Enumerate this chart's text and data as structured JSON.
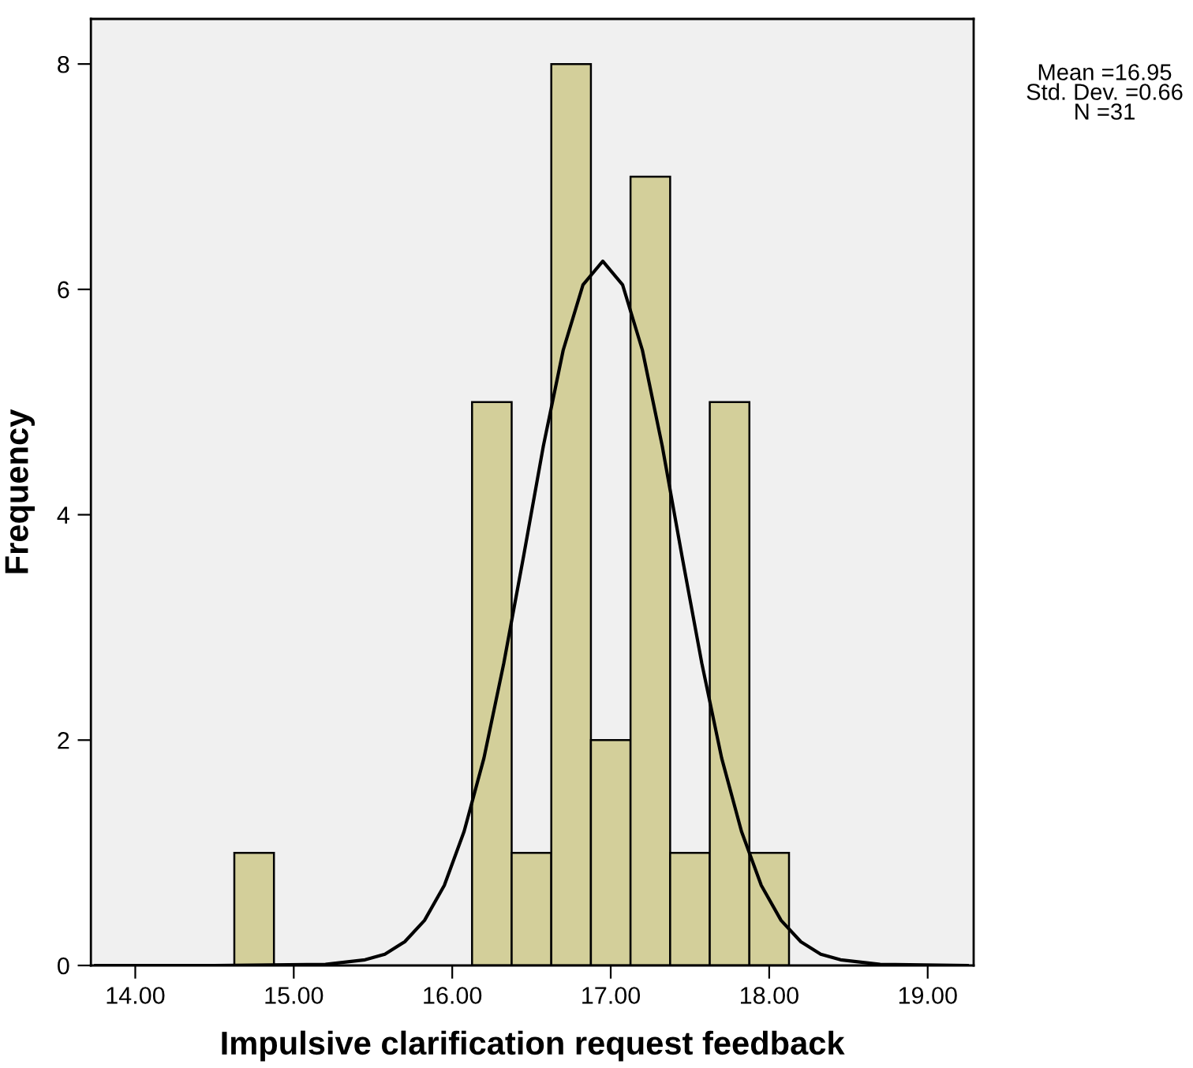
{
  "chart_data": {
    "type": "histogram",
    "xlabel": "Impulsive clarification request feedback",
    "ylabel": "Frequency",
    "bins": [
      14.625,
      14.875,
      15.125,
      15.375,
      15.625,
      15.875,
      16.125,
      16.375,
      16.625,
      16.875,
      17.125,
      17.375,
      17.625,
      17.875,
      18.125
    ],
    "values": [
      1,
      0,
      0,
      0,
      0,
      0,
      5,
      1,
      8,
      2,
      7,
      1,
      5,
      1
    ],
    "color": "#d3cf9a",
    "series": [
      {
        "type": "line",
        "color": "#000000",
        "x": [
          13.75,
          14.5,
          15.2,
          15.45,
          15.575,
          15.7,
          15.825,
          15.95,
          16.075,
          16.2,
          16.325,
          16.45,
          16.575,
          16.7,
          16.825,
          16.95,
          17.075,
          17.2,
          17.325,
          17.45,
          17.575,
          17.7,
          17.825,
          17.95,
          18.075,
          18.2,
          18.325,
          18.45,
          18.7,
          19.25
        ],
        "values": [
          0,
          0,
          0.01,
          0.05,
          0.1,
          0.21,
          0.4,
          0.71,
          1.19,
          1.84,
          2.68,
          3.63,
          4.61,
          5.46,
          6.04,
          6.25,
          6.04,
          5.46,
          4.61,
          3.63,
          2.68,
          1.84,
          1.19,
          0.71,
          0.4,
          0.21,
          0.1,
          0.05,
          0.01,
          0
        ]
      }
    ],
    "xlim": [
      13.72,
      19.29
    ],
    "ylim": [
      0,
      8.4
    ],
    "xticks": [
      {
        "value": 14,
        "label": "14.00"
      },
      {
        "value": 15,
        "label": "15.00"
      },
      {
        "value": 16,
        "label": "16.00"
      },
      {
        "value": 17,
        "label": "17.00"
      },
      {
        "value": 18,
        "label": "18.00"
      },
      {
        "value": 19,
        "label": "19.00"
      }
    ],
    "yticks": [
      0,
      2,
      4,
      6,
      8
    ],
    "annotations": [
      "Mean =16.95",
      "Std. Dev. =0.66",
      "N =31"
    ]
  }
}
